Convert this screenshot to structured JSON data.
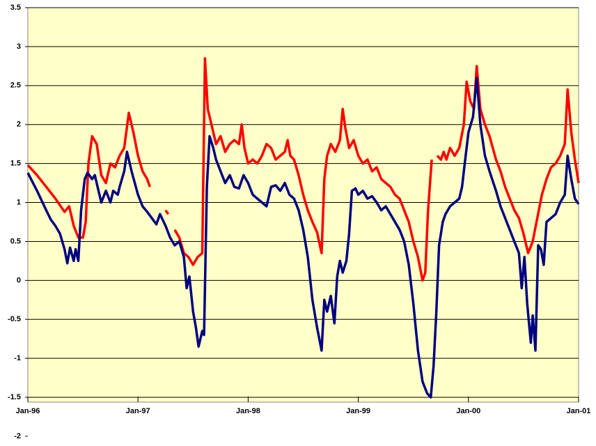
{
  "chart_data": {
    "type": "line",
    "xlim": [
      0,
      60
    ],
    "xticks": [
      {
        "value": 0,
        "label": "Jan-96"
      },
      {
        "value": 12,
        "label": "Jan-97"
      },
      {
        "value": 24,
        "label": "Jan-98"
      },
      {
        "value": 36,
        "label": "Jan-99"
      },
      {
        "value": 48,
        "label": "Jan-00"
      },
      {
        "value": 60,
        "label": "Jan-01"
      }
    ],
    "ylim": [
      -2,
      3.5
    ],
    "yticks": [
      -2,
      -1.5,
      -1,
      -0.5,
      0,
      0.5,
      1,
      1.5,
      2,
      2.5,
      3,
      3.5
    ],
    "grid": true,
    "series": [
      {
        "color": "#ff0000",
        "x": [
          0,
          1,
          2,
          3,
          4,
          4.5,
          5,
          5.5,
          6,
          6.3,
          6.6,
          7,
          7.5,
          8,
          8.5,
          9,
          9.5,
          10,
          10.5,
          11,
          11.5,
          12,
          12.5,
          13,
          13.3,
          13.6,
          14,
          14.3,
          15,
          15.3,
          15.5,
          16,
          16.5,
          17,
          17.5,
          18,
          18.5,
          19,
          19.3,
          19.6,
          20,
          20.5,
          21,
          21.5,
          22,
          22.5,
          23,
          23.3,
          23.6,
          24,
          24.5,
          25,
          25.5,
          26,
          26.5,
          27,
          27.5,
          28,
          28.3,
          28.6,
          29,
          29.5,
          30,
          30.5,
          31,
          31.5,
          32,
          32.3,
          32.6,
          33,
          33.5,
          34,
          34.3,
          34.6,
          35,
          35.5,
          36,
          36.5,
          37,
          37.5,
          38,
          38.5,
          39,
          39.5,
          40,
          40.5,
          41,
          41.5,
          42,
          42.5,
          43,
          43.3,
          43.6,
          44,
          44.3,
          44.6,
          45,
          45.3,
          45.6,
          46,
          46.5,
          47,
          47.5,
          47.8,
          48.2,
          48.6,
          48.9,
          49.3,
          49.8,
          50.3,
          51,
          51.5,
          52,
          52.5,
          53,
          53.5,
          54,
          54.5,
          55,
          55.5,
          56,
          56.5,
          57,
          57.5,
          58,
          58.5,
          58.8,
          59.2,
          59.6,
          60
        ],
        "values": [
          1.48,
          1.35,
          1.2,
          1.05,
          0.88,
          0.95,
          0.7,
          0.55,
          0.55,
          0.75,
          1.5,
          1.85,
          1.75,
          1.35,
          1.25,
          1.5,
          1.45,
          1.6,
          1.7,
          2.15,
          1.9,
          1.6,
          1.4,
          1.3,
          1.2,
          null,
          1.05,
          null,
          0.9,
          0.85,
          null,
          0.65,
          0.55,
          0.35,
          0.3,
          0.2,
          0.3,
          0.35,
          2.85,
          2.2,
          2.0,
          1.75,
          1.85,
          1.65,
          1.75,
          1.8,
          1.75,
          2.0,
          1.7,
          1.5,
          1.55,
          1.5,
          1.6,
          1.75,
          1.7,
          1.55,
          1.6,
          1.65,
          1.8,
          1.6,
          1.55,
          1.35,
          1.1,
          0.9,
          0.75,
          0.62,
          0.35,
          1.3,
          1.6,
          1.75,
          1.65,
          1.8,
          2.2,
          1.95,
          1.7,
          1.8,
          1.6,
          1.5,
          1.55,
          1.4,
          1.45,
          1.3,
          1.25,
          1.2,
          1.1,
          1.05,
          0.9,
          0.75,
          0.5,
          0.3,
          0.0,
          0.1,
          0.9,
          1.55,
          null,
          1.6,
          1.55,
          1.65,
          1.55,
          1.7,
          1.6,
          1.7,
          2.0,
          2.55,
          2.3,
          2.2,
          2.75,
          2.2,
          2.0,
          1.85,
          1.55,
          1.4,
          1.2,
          1.05,
          0.9,
          0.8,
          0.6,
          0.35,
          0.5,
          0.8,
          1.1,
          1.3,
          1.45,
          1.5,
          1.6,
          1.75,
          2.45,
          1.9,
          1.55,
          1.25
        ]
      },
      {
        "color": "#000080",
        "x": [
          0,
          1,
          2,
          2.5,
          3,
          3.5,
          4,
          4.3,
          4.6,
          5,
          5.2,
          5.5,
          5.8,
          6.2,
          6.5,
          7,
          7.3,
          7.7,
          8,
          8.5,
          9,
          9.3,
          9.8,
          10,
          10.5,
          10.8,
          11.3,
          12,
          12.5,
          13,
          13.5,
          14,
          14.4,
          15,
          15.5,
          16,
          16.5,
          17,
          17.3,
          17.6,
          18,
          18.3,
          18.6,
          19,
          19.2,
          19.5,
          19.8,
          20.2,
          20.5,
          21,
          21.5,
          22,
          22.5,
          23,
          23.5,
          24,
          24.5,
          25,
          25.5,
          26,
          26.5,
          27,
          27.5,
          28,
          28.5,
          29,
          29.5,
          30,
          30.5,
          31,
          31.5,
          32,
          32.3,
          32.6,
          33,
          33.4,
          33.7,
          34,
          34.3,
          34.7,
          35,
          35.3,
          35.7,
          36,
          36.5,
          37,
          37.5,
          38,
          38.5,
          39,
          39.5,
          40,
          40.5,
          41,
          41.5,
          42,
          42.5,
          43,
          43.5,
          43.9,
          44.2,
          44.5,
          44.8,
          45.2,
          45.5,
          46,
          46.5,
          47,
          47.3,
          47.6,
          48,
          48.5,
          48.9,
          49.3,
          49.8,
          50.3,
          51,
          51.5,
          52,
          52.5,
          53,
          53.5,
          53.8,
          54.1,
          54.4,
          54.8,
          55,
          55.3,
          55.6,
          55.9,
          56.2,
          56.5,
          57,
          57.5,
          58,
          58.5,
          58.8,
          59.2,
          59.6,
          60
        ],
        "values": [
          1.38,
          1.15,
          0.9,
          0.78,
          0.7,
          0.6,
          0.4,
          0.22,
          0.42,
          0.25,
          0.4,
          0.25,
          0.9,
          1.3,
          1.38,
          1.3,
          1.35,
          1.15,
          1.0,
          1.15,
          1.0,
          1.15,
          1.1,
          1.2,
          1.4,
          1.65,
          1.4,
          1.1,
          0.95,
          0.88,
          0.8,
          0.72,
          0.85,
          0.7,
          0.55,
          0.45,
          0.5,
          0.3,
          -0.1,
          0.05,
          -0.4,
          -0.6,
          -0.85,
          -0.65,
          -0.7,
          1.2,
          1.85,
          1.7,
          1.55,
          1.4,
          1.25,
          1.35,
          1.2,
          1.18,
          1.35,
          1.25,
          1.1,
          1.05,
          1.0,
          0.95,
          1.2,
          1.22,
          1.15,
          1.25,
          1.1,
          1.05,
          0.9,
          0.65,
          0.3,
          -0.25,
          -0.6,
          -0.9,
          -0.25,
          -0.4,
          -0.2,
          -0.55,
          0.05,
          0.25,
          0.1,
          0.25,
          0.6,
          1.15,
          1.18,
          1.1,
          1.15,
          1.05,
          1.08,
          1.0,
          0.9,
          0.95,
          0.85,
          0.75,
          0.65,
          0.5,
          0.2,
          -0.3,
          -0.9,
          -1.3,
          -1.45,
          -1.5,
          -1.1,
          -0.4,
          0.45,
          0.75,
          0.85,
          0.95,
          1.0,
          1.05,
          1.2,
          1.5,
          1.9,
          2.1,
          2.6,
          2.0,
          1.6,
          1.4,
          1.15,
          0.95,
          0.8,
          0.65,
          0.5,
          0.35,
          -0.1,
          0.3,
          -0.3,
          -0.8,
          -0.45,
          -0.9,
          0.45,
          0.4,
          0.2,
          0.75,
          0.8,
          0.85,
          1.0,
          1.1,
          1.6,
          1.3,
          1.05,
          0.98
        ]
      }
    ]
  }
}
